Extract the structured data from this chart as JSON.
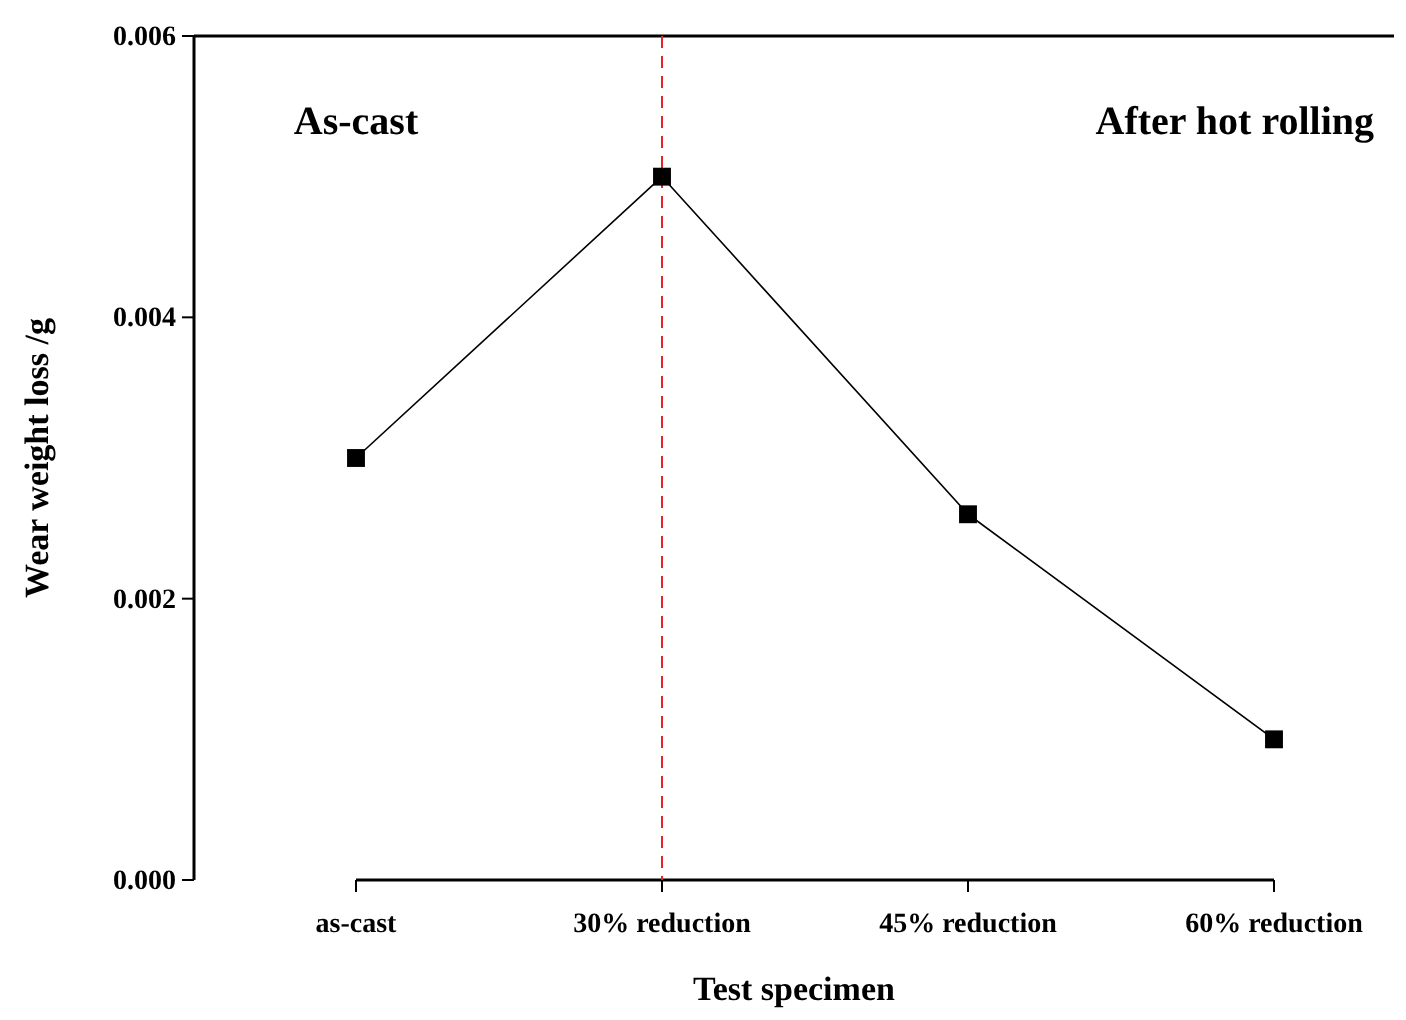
{
  "chart_data": {
    "type": "line",
    "xlabel": "Test specimen",
    "ylabel": "Wear weight loss /g",
    "categories": [
      "as-cast",
      "30% reduction",
      "45% reduction",
      "60% reduction"
    ],
    "series": [
      {
        "color": "#000000",
        "values": [
          0.003,
          0.005,
          0.0026,
          0.001
        ]
      }
    ],
    "ylim": [
      0,
      0.006
    ],
    "yticks": [
      {
        "value": 0,
        "label": "0.000"
      },
      {
        "value": 0.002,
        "label": "0.002"
      },
      {
        "value": 0.004,
        "label": "0.004"
      },
      {
        "value": 0.006,
        "label": "0.006"
      }
    ],
    "ref_lines": [
      {
        "axis": "x",
        "value": "30% reduction",
        "color": "#e8242a",
        "line_style": "dashed"
      }
    ],
    "annotations": [
      "As-cast",
      "After hot rolling"
    ],
    "marker": "square",
    "line_style": "solid",
    "grid": false,
    "legend": false
  }
}
